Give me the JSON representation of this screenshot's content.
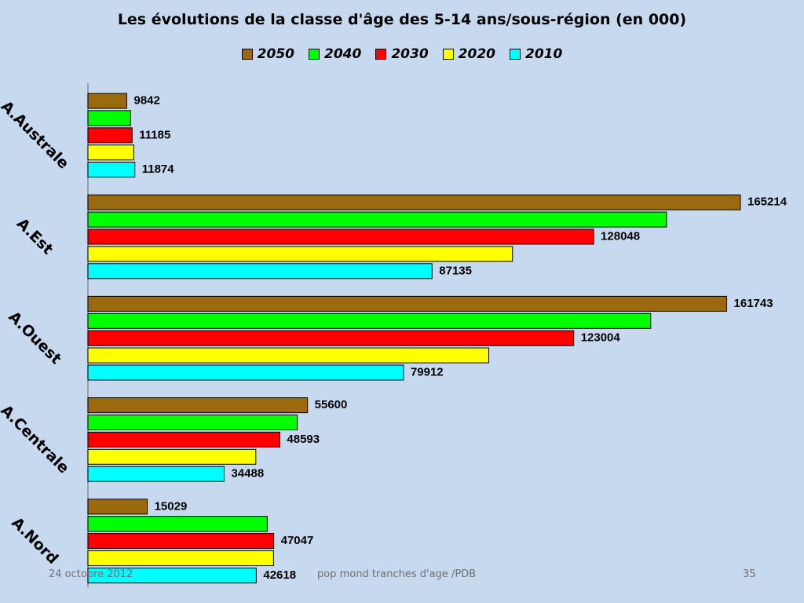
{
  "chart_data": {
    "type": "bar",
    "orientation": "horizontal",
    "title": "Les évolutions de la classe d'âge des 5-14 ans/sous-région (en 000)",
    "categories": [
      "A.Australe",
      "A.Est",
      "A.Ouest",
      "A.Centrale",
      "A.Nord"
    ],
    "series": [
      {
        "name": "2050",
        "color": "#9b6a0e",
        "values": [
          9842,
          165214,
          161743,
          55600,
          15029
        ],
        "labels": [
          "9842",
          "165214",
          "161743",
          "55600",
          "15029"
        ]
      },
      {
        "name": "2040",
        "color": "#00ff00",
        "values": [
          10800,
          146500,
          142500,
          53000,
          45400
        ],
        "labels": [
          "",
          "",
          "",
          "",
          ""
        ]
      },
      {
        "name": "2030",
        "color": "#ff0000",
        "values": [
          11185,
          128048,
          123004,
          48593,
          47047
        ],
        "labels": [
          "11185",
          "128048",
          "123004",
          "48593",
          "47047"
        ]
      },
      {
        "name": "2020",
        "color": "#ffff00",
        "values": [
          11600,
          107500,
          101500,
          42500,
          47000
        ],
        "labels": [
          "",
          "",
          "",
          "",
          ""
        ]
      },
      {
        "name": "2010",
        "color": "#00ffff",
        "values": [
          11874,
          87135,
          79912,
          34488,
          42618
        ],
        "labels": [
          "11874",
          "87135",
          "79912",
          "34488",
          "42618"
        ]
      }
    ],
    "xlim": [
      0,
      165214
    ],
    "grid": false,
    "legend_position": "top"
  },
  "footer": {
    "date": "24 octobre 2012",
    "source": "pop mond  tranches d'age /PDB",
    "page": "35"
  }
}
